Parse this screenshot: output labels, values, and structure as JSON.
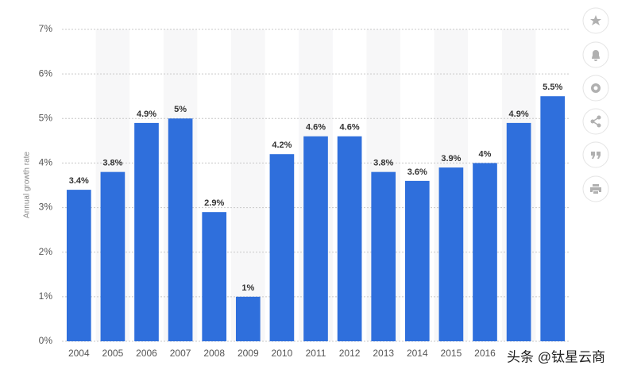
{
  "chart_data": {
    "type": "bar",
    "y_label": "Annual growth rate",
    "categories": [
      "2004",
      "2005",
      "2006",
      "2007",
      "2008",
      "2009",
      "2010",
      "2011",
      "2012",
      "2013",
      "2014",
      "2015",
      "2016",
      null,
      null
    ],
    "values": [
      3.4,
      3.8,
      4.9,
      5,
      2.9,
      1,
      4.2,
      4.6,
      4.6,
      3.8,
      3.6,
      3.9,
      4,
      4.9,
      5.5
    ],
    "value_labels": [
      "3.4%",
      "3.8%",
      "4.9%",
      "5%",
      "2.9%",
      "1%",
      "4.2%",
      "4.6%",
      "4.6%",
      "3.8%",
      "3.6%",
      "3.9%",
      "4%",
      "4.9%",
      "5.5%"
    ],
    "color": "#2f6fdc",
    "ylim": [
      0,
      7
    ],
    "yticks": [
      {
        "value": 0,
        "label": "0%"
      },
      {
        "value": 1,
        "label": "1%"
      },
      {
        "value": 2,
        "label": "2%"
      },
      {
        "value": 3,
        "label": "3%"
      },
      {
        "value": 4,
        "label": "4%"
      },
      {
        "value": 5,
        "label": "5%"
      },
      {
        "value": 6,
        "label": "6%"
      },
      {
        "value": 7,
        "label": "7%"
      }
    ],
    "grid": true
  },
  "watermark": "头条 @钛星云商"
}
